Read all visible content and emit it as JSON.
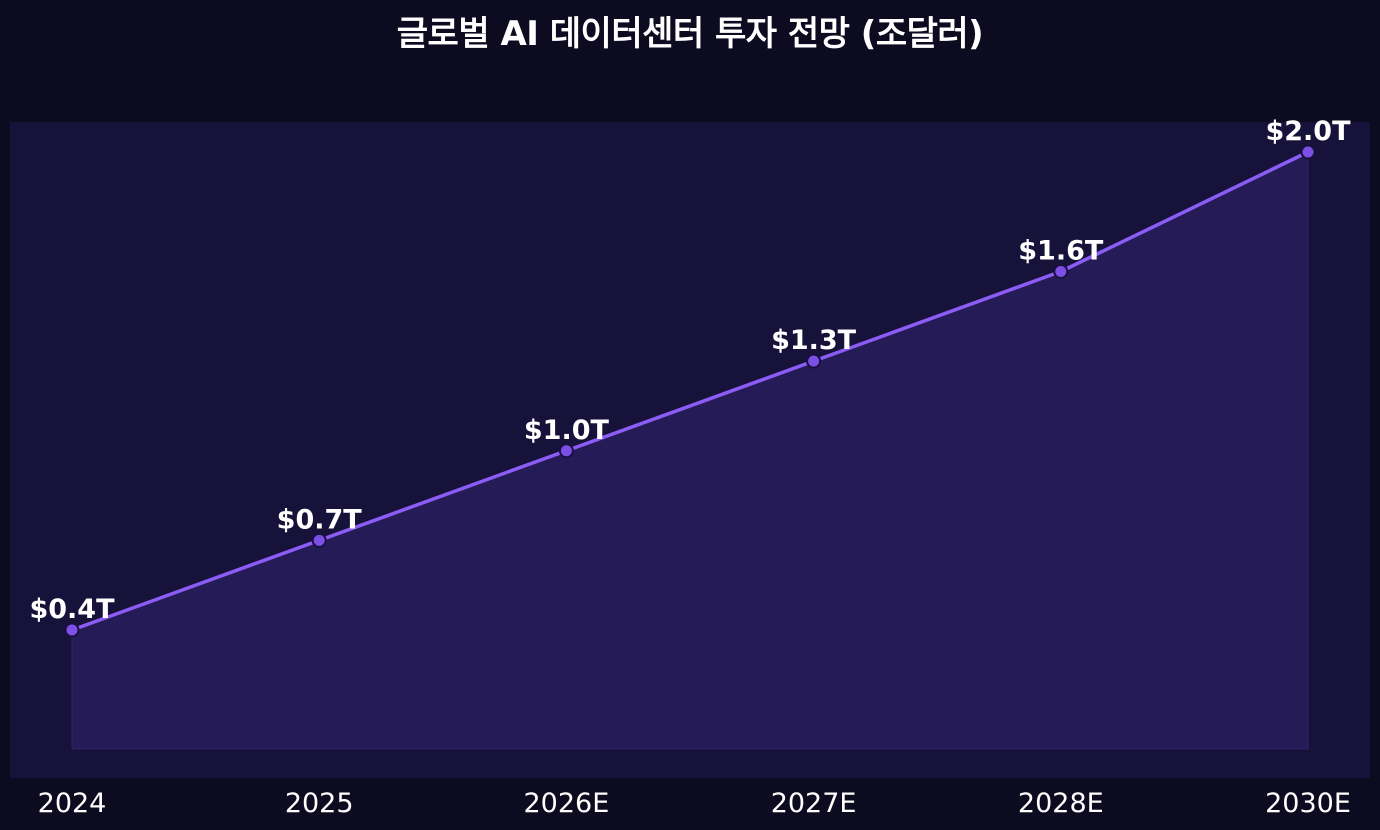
{
  "chart_data": {
    "type": "area",
    "title": "글로벌 AI 데이터센터 투자 전망 (조달러)",
    "xlabel": "",
    "ylabel": "",
    "categories": [
      "2024",
      "2025",
      "2026E",
      "2027E",
      "2028E",
      "2030E"
    ],
    "series": [
      {
        "values": [
          0.4,
          0.7,
          1.0,
          1.3,
          1.6,
          2.0
        ],
        "data_labels": [
          "$0.4T",
          "$0.7T",
          "$1.0T",
          "$1.3T",
          "$1.6T",
          "$2.0T"
        ]
      }
    ],
    "ylim": [
      0,
      2.0
    ],
    "grid": false,
    "legend": "none"
  },
  "colors": {
    "page_background": "#0d0b1f",
    "plot_background": "#16123a",
    "area_fill": "#251c57",
    "line": "#8b5cf6",
    "marker_fill": "#7c4fe6",
    "marker_stroke": "#1a1040",
    "text": "#ffffff"
  }
}
